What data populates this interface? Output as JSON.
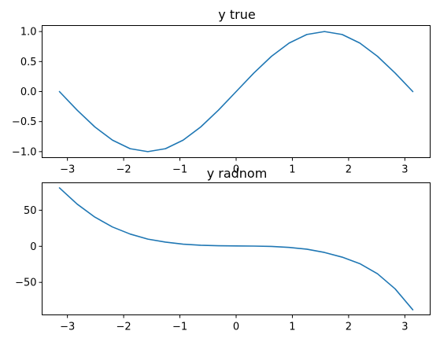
{
  "chart_data": [
    {
      "type": "line",
      "title": "y true",
      "xlabel": "",
      "ylabel": "",
      "xlim": [
        -3.45,
        3.45
      ],
      "ylim": [
        -1.1,
        1.1
      ],
      "xticks": [
        -3,
        -2,
        -1,
        0,
        1,
        2,
        3
      ],
      "xtick_labels": [
        "−3",
        "−2",
        "−1",
        "0",
        "1",
        "2",
        "3"
      ],
      "yticks": [
        -1.0,
        -0.5,
        0.0,
        0.5,
        1.0
      ],
      "ytick_labels": [
        "−1.0",
        "−0.5",
        "0.0",
        "0.5",
        "1.0"
      ],
      "grid": false,
      "color": "#1f77b4",
      "series": [
        {
          "x": [
            -3.1416,
            -2.8274,
            -2.5133,
            -2.1991,
            -1.885,
            -1.5708,
            -1.2566,
            -0.9425,
            -0.6283,
            -0.3142,
            0.0,
            0.3142,
            0.6283,
            0.9425,
            1.2566,
            1.5708,
            1.885,
            2.1991,
            2.5133,
            2.8274,
            3.1416
          ],
          "values": [
            0.0,
            -0.309,
            -0.5878,
            -0.809,
            -0.9511,
            -1.0,
            -0.9511,
            -0.809,
            -0.5878,
            -0.309,
            0.0,
            0.309,
            0.5878,
            0.809,
            0.9511,
            1.0,
            0.9511,
            0.809,
            0.5878,
            0.309,
            0.0
          ]
        }
      ]
    },
    {
      "type": "line",
      "title": "y radnom",
      "xlabel": "",
      "ylabel": "",
      "xlim": [
        -3.45,
        3.45
      ],
      "ylim": [
        -95,
        88
      ],
      "xticks": [
        -3,
        -2,
        -1,
        0,
        1,
        2,
        3
      ],
      "xtick_labels": [
        "−3",
        "−2",
        "−1",
        "0",
        "1",
        "2",
        "3"
      ],
      "yticks": [
        -50,
        0,
        50
      ],
      "ytick_labels": [
        "−50",
        "0",
        "50"
      ],
      "grid": false,
      "color": "#1f77b4",
      "series": [
        {
          "x": [
            -3.1416,
            -2.8274,
            -2.5133,
            -2.1991,
            -1.885,
            -1.5708,
            -1.2566,
            -0.9425,
            -0.6283,
            -0.3142,
            0.0,
            0.3142,
            0.6283,
            0.9425,
            1.2566,
            1.5708,
            1.885,
            2.1991,
            2.5133,
            2.8274,
            3.1416
          ],
          "values": [
            81,
            58.5,
            40.5,
            26.8,
            17,
            10,
            5.8,
            3,
            1.5,
            0.8,
            0.5,
            0.3,
            -0.2,
            -1.5,
            -4,
            -8.5,
            -15,
            -24,
            -38,
            -59,
            -88
          ]
        }
      ]
    }
  ]
}
